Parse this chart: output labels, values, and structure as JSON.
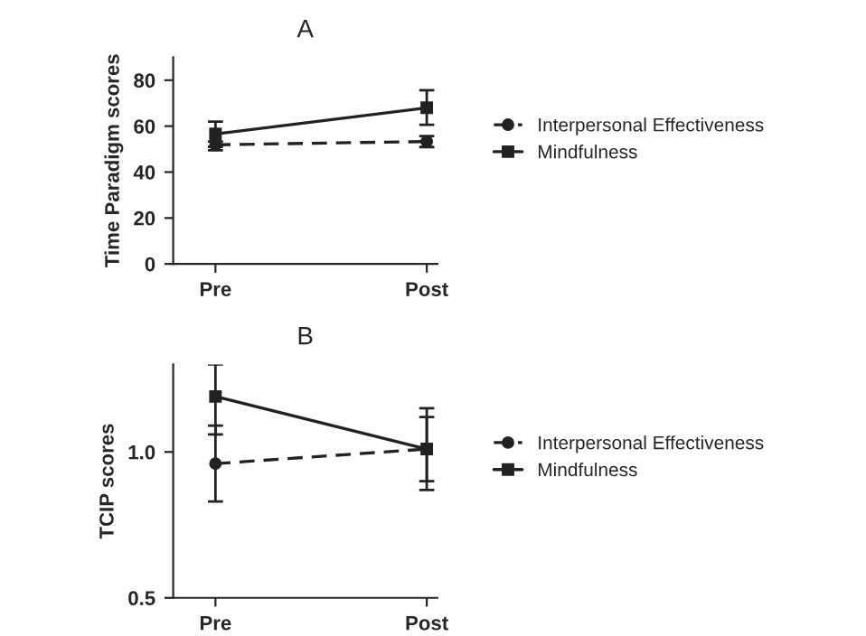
{
  "chart_data": [
    {
      "type": "line",
      "title": "A",
      "ylabel": "Time Paradigm scores",
      "categories": [
        "Pre",
        "Post"
      ],
      "ylim": [
        0,
        90
      ],
      "yticks": [
        0,
        20,
        40,
        60,
        80
      ],
      "legend": "right",
      "grid": false,
      "series": [
        {
          "name": "Interpersonal Effectiveness",
          "color": "#222222",
          "values": [
            51.9,
            53.3
          ],
          "errors": [
            [
              49.5,
              53.3
            ],
            [
              50.9,
              55.7
            ]
          ],
          "marker": "circle",
          "line_style": "dashed"
        },
        {
          "name": "Mindfulness",
          "color": "#222222",
          "values": [
            56.6,
            68.0
          ],
          "errors": [
            [
              51.0,
              62.0
            ],
            [
              60.6,
              75.6
            ]
          ],
          "marker": "square",
          "line_style": "solid"
        }
      ]
    },
    {
      "type": "line",
      "title": "B",
      "ylabel": "TCIP scores",
      "categories": [
        "Pre",
        "Post"
      ],
      "ylim": [
        0.5,
        1.3
      ],
      "yticks": [
        {
          "value": 0.5,
          "label": "0.5"
        },
        {
          "value": 1.0,
          "label": "1.0"
        }
      ],
      "legend": "right",
      "grid": false,
      "series": [
        {
          "name": "Interpersonal Effectiveness",
          "color": "#222222",
          "values": [
            0.96,
            1.01
          ],
          "errors": [
            [
              0.83,
              1.09
            ],
            [
              0.87,
              1.15
            ]
          ],
          "marker": "circle",
          "line_style": "dashed"
        },
        {
          "name": "Mindfulness",
          "color": "#222222",
          "values": [
            1.19,
            1.01
          ],
          "errors": [
            [
              1.06,
              1.3
            ],
            [
              0.9,
              1.12
            ]
          ],
          "marker": "square",
          "line_style": "solid"
        }
      ]
    }
  ]
}
